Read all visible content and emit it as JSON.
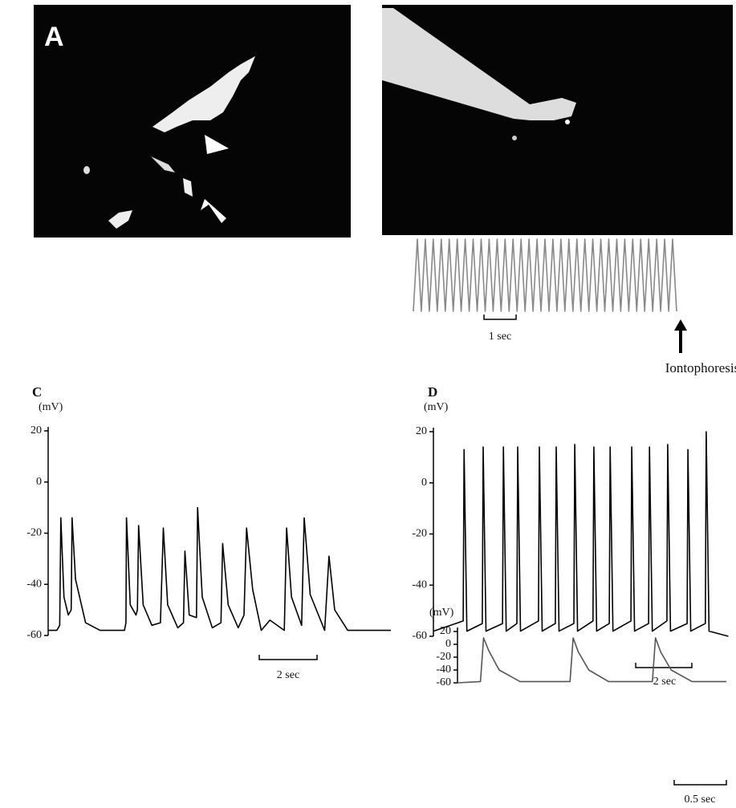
{
  "panel_a": {
    "label": "A"
  },
  "chart_data": [
    {
      "type": "line",
      "color": "#888888",
      "ylim": [
        0,
        1
      ],
      "x": [
        0,
        0.125,
        0.25,
        0.375,
        0.5,
        0.625,
        0.75,
        0.875,
        1,
        1.125,
        1.25,
        1.375,
        1.5,
        1.625,
        1.75,
        1.875,
        2,
        2.125,
        2.25,
        2.375,
        2.5,
        2.625,
        2.75,
        2.875,
        3,
        3.125,
        3.25,
        3.375,
        3.5,
        3.625,
        3.75,
        3.875,
        4,
        4.125,
        4.25,
        4.375,
        4.5,
        4.625,
        4.75,
        4.875,
        5,
        5.125,
        5.25,
        5.375,
        5.5,
        5.625,
        5.75,
        5.875,
        6,
        6.125,
        6.25,
        6.375,
        6.5,
        6.625,
        6.75,
        6.875,
        7,
        7.125,
        7.25,
        7.375,
        7.5,
        7.625,
        7.75,
        7.875,
        8,
        8.125,
        8.25
      ],
      "values": [
        0,
        1,
        0,
        1,
        0,
        1,
        0,
        1,
        0,
        1,
        0,
        1,
        0,
        1,
        0,
        1,
        0,
        1,
        0,
        1,
        0,
        1,
        0,
        1,
        0,
        1,
        0,
        1,
        0,
        1,
        0,
        1,
        0,
        1,
        0,
        1,
        0,
        1,
        0,
        1,
        0,
        1,
        0,
        1,
        0,
        1,
        0,
        1,
        0,
        1,
        0,
        1,
        0,
        1,
        0,
        1,
        0,
        1,
        0,
        1,
        0,
        1,
        0,
        1,
        0,
        1,
        0
      ],
      "xlim": [
        0,
        8.25
      ],
      "scale_label": "1 sec",
      "annotation": "Iontophoresis"
    },
    {
      "type": "line",
      "title": "C",
      "y_label": "(mV)",
      "color": "#000000",
      "x": [
        0,
        0.3,
        0.4,
        0.44,
        0.55,
        0.7,
        0.8,
        0.83,
        0.95,
        1.3,
        1.8,
        2.65,
        2.7,
        2.72,
        2.85,
        3.05,
        3.1,
        3.14,
        3.3,
        3.6,
        3.9,
        4.0,
        4.15,
        4.5,
        4.7,
        4.75,
        4.9,
        5.15,
        5.19,
        5.35,
        5.7,
        6.0,
        6.06,
        6.25,
        6.6,
        6.8,
        6.89,
        7.1,
        7.4,
        7.7,
        8.2,
        8.28,
        8.45,
        8.8,
        8.89,
        9.1,
        9.6,
        9.75,
        9.95,
        10.4,
        11.9
      ],
      "values": [
        -58,
        -58,
        -56,
        -14,
        -45,
        -52,
        -50,
        -14,
        -38,
        -55,
        -58,
        -58,
        -55,
        -14,
        -48,
        -52,
        -50,
        -17,
        -48,
        -56,
        -55,
        -18,
        -48,
        -57,
        -55,
        -27,
        -52,
        -53,
        -10,
        -45,
        -57,
        -55,
        -24,
        -48,
        -57,
        -52,
        -18,
        -42,
        -58,
        -54,
        -58,
        -18,
        -45,
        -56,
        -14,
        -44,
        -58,
        -29,
        -50,
        -58,
        -58
      ],
      "xlim": [
        0,
        11.9
      ],
      "ylim": [
        -60,
        20
      ],
      "yticks": [
        20,
        0,
        -20,
        -40,
        -60
      ],
      "scale_label": "2 sec"
    },
    {
      "type": "line",
      "title": "D",
      "y_label": "(mV)",
      "color": "#000000",
      "x": [
        0,
        1.06,
        1.09,
        1.19,
        1.74,
        1.77,
        1.87,
        2.46,
        2.49,
        2.59,
        2.97,
        3.0,
        3.1,
        3.74,
        3.77,
        3.87,
        4.34,
        4.37,
        4.47,
        5.0,
        5.03,
        5.13,
        5.68,
        5.71,
        5.81,
        6.26,
        6.29,
        6.39,
        7.03,
        7.06,
        7.16,
        7.66,
        7.69,
        7.79,
        8.31,
        8.34,
        8.44,
        9.03,
        9.06,
        9.16,
        9.68,
        9.71,
        9.81,
        10.5
      ],
      "values": [
        -58,
        -54,
        13,
        -58,
        -55,
        14,
        -58,
        -55,
        14,
        -58,
        -55,
        14,
        -58,
        -54,
        14,
        -58,
        -55,
        14,
        -58,
        -55,
        15,
        -58,
        -54,
        14,
        -58,
        -55,
        14,
        -58,
        -54,
        14,
        -58,
        -55,
        14,
        -58,
        -54,
        15,
        -58,
        -55,
        13,
        -58,
        -55,
        20,
        -58,
        -60
      ],
      "xlim": [
        0,
        10.57
      ],
      "ylim": [
        -60,
        20
      ],
      "yticks": [
        20,
        0,
        -20,
        -40,
        -60
      ],
      "scale_label": "2 sec"
    },
    {
      "type": "line",
      "y_label": "(mV)",
      "color": "#555555",
      "x": [
        0,
        0.22,
        0.25,
        0.3,
        0.4,
        0.6,
        1.08,
        1.11,
        1.16,
        1.26,
        1.45,
        1.87,
        1.9,
        1.95,
        2.05,
        2.25,
        2.58
      ],
      "values": [
        -60,
        -58,
        10,
        -10,
        -40,
        -58,
        -58,
        10,
        -12,
        -40,
        -58,
        -58,
        10,
        -12,
        -40,
        -58,
        -58
      ],
      "xlim": [
        0,
        2.58
      ],
      "ylim": [
        -60,
        20
      ],
      "yticks": [
        20,
        0,
        -20,
        -40,
        -60
      ],
      "scale_label": "0.5 sec"
    }
  ]
}
